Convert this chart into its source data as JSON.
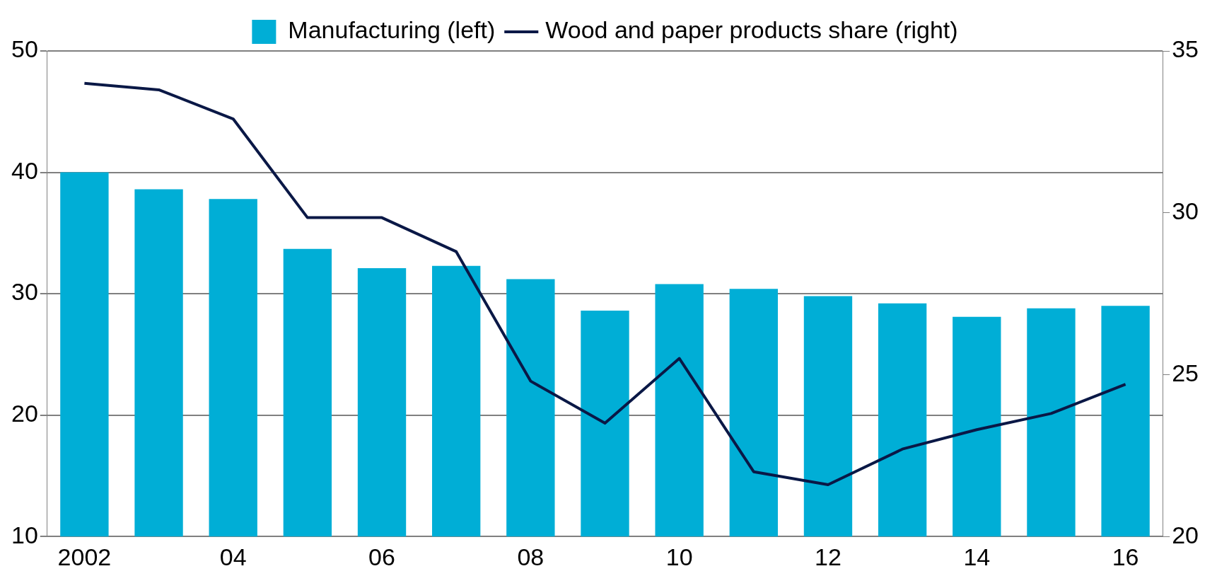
{
  "chart_data": {
    "type": "bar",
    "categories": [
      "2002",
      null,
      "04",
      null,
      "06",
      null,
      "08",
      null,
      "10",
      null,
      "12",
      null,
      "14",
      null,
      "16"
    ],
    "series": [
      {
        "name": "Manufacturing (left)",
        "color": "#00aed6",
        "values": [
          40.0,
          38.6,
          37.8,
          33.7,
          32.1,
          32.3,
          31.2,
          28.6,
          30.8,
          30.4,
          29.8,
          29.2,
          28.1,
          28.8,
          29.0
        ]
      },
      {
        "name": "Wood and paper products share (right)",
        "type": "line",
        "axis": "y2",
        "color": "#0a1846",
        "values": [
          34.0,
          33.8,
          32.9,
          29.85,
          29.85,
          28.8,
          24.8,
          23.5,
          25.5,
          22.0,
          21.6,
          22.7,
          23.3,
          23.8,
          24.7
        ]
      }
    ],
    "ylim": [
      10,
      50
    ],
    "yticks": [
      10,
      20,
      30,
      40,
      50
    ],
    "y2lim": [
      20,
      35
    ],
    "y2ticks": [
      20,
      25,
      30,
      35
    ],
    "grid": "y",
    "legend": "top",
    "marker": "none",
    "line_style": "solid"
  }
}
